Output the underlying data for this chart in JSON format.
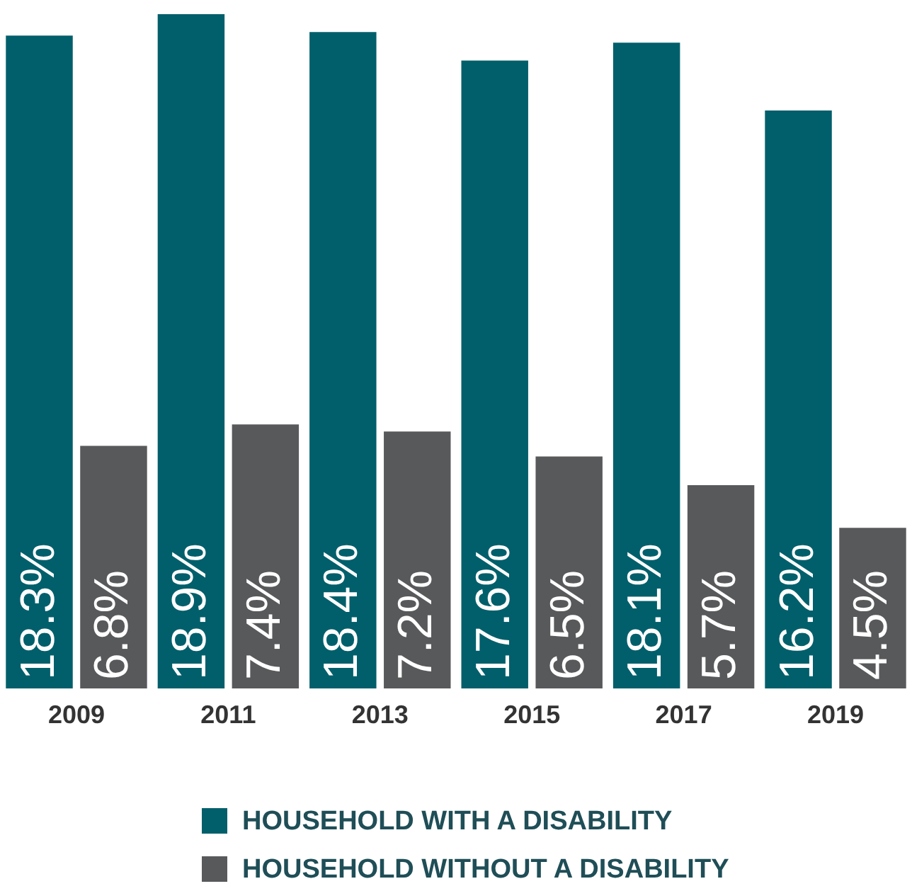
{
  "chart_data": {
    "type": "bar",
    "categories": [
      "2009",
      "2011",
      "2013",
      "2015",
      "2017",
      "2019"
    ],
    "series": [
      {
        "name": "HOUSEHOLD WITH A DISABILITY",
        "color": "#005f6b",
        "values": [
          18.3,
          18.9,
          18.4,
          17.6,
          18.1,
          16.2
        ],
        "value_labels": [
          "18.3%",
          "18.9%",
          "18.4%",
          "17.6%",
          "18.1%",
          "16.2%"
        ]
      },
      {
        "name": "HOUSEHOLD WITHOUT A DISABILITY",
        "color": "#58595b",
        "values": [
          6.8,
          7.4,
          7.2,
          6.5,
          5.7,
          4.5
        ],
        "value_labels": [
          "6.8%",
          "7.4%",
          "7.2%",
          "6.5%",
          "5.7%",
          "4.5%"
        ]
      }
    ],
    "legend": "bottom"
  }
}
